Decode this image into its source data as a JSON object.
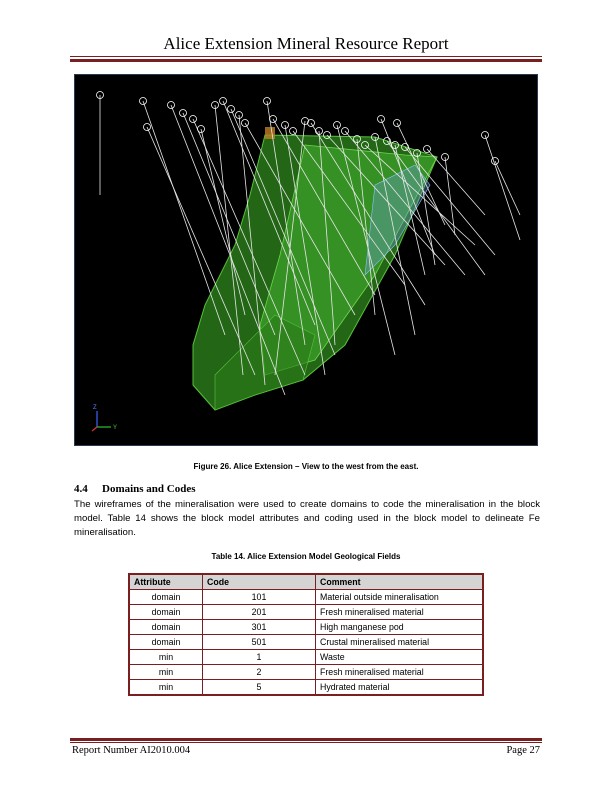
{
  "header": {
    "title": "Alice Extension Mineral Resource Report"
  },
  "figure": {
    "caption": "Figure 26. Alice Extension – View to the west from the east.",
    "axis_labels": {
      "z": "Z",
      "y": "Y"
    },
    "colors": {
      "background": "#000000",
      "wireframe": "#3faa2a",
      "drillhole": "#e8e8e8"
    }
  },
  "section": {
    "number": "4.4",
    "title": "Domains and Codes",
    "paragraph": "The wireframes of the mineralisation were used to create domains to code the mineralisation in the block model.  Table 14 shows the block model attributes and coding used in the block model to delineate Fe mineralisation."
  },
  "table": {
    "title": "Table 14. Alice Extension Model Geological Fields",
    "headers": [
      "Attribute",
      "Code",
      "Comment"
    ],
    "rows": [
      [
        "domain",
        "101",
        "Material outside mineralisation"
      ],
      [
        "domain",
        "201",
        "Fresh mineralised material"
      ],
      [
        "domain",
        "301",
        "High manganese pod"
      ],
      [
        "domain",
        "501",
        "Crustal mineralised material"
      ],
      [
        "min",
        "1",
        "Waste"
      ],
      [
        "min",
        "2",
        "Fresh mineralised material"
      ],
      [
        "min",
        "5",
        "Hydrated material"
      ]
    ]
  },
  "footer": {
    "report_number": "Report Number AI2010.004",
    "page": "Page 27"
  }
}
